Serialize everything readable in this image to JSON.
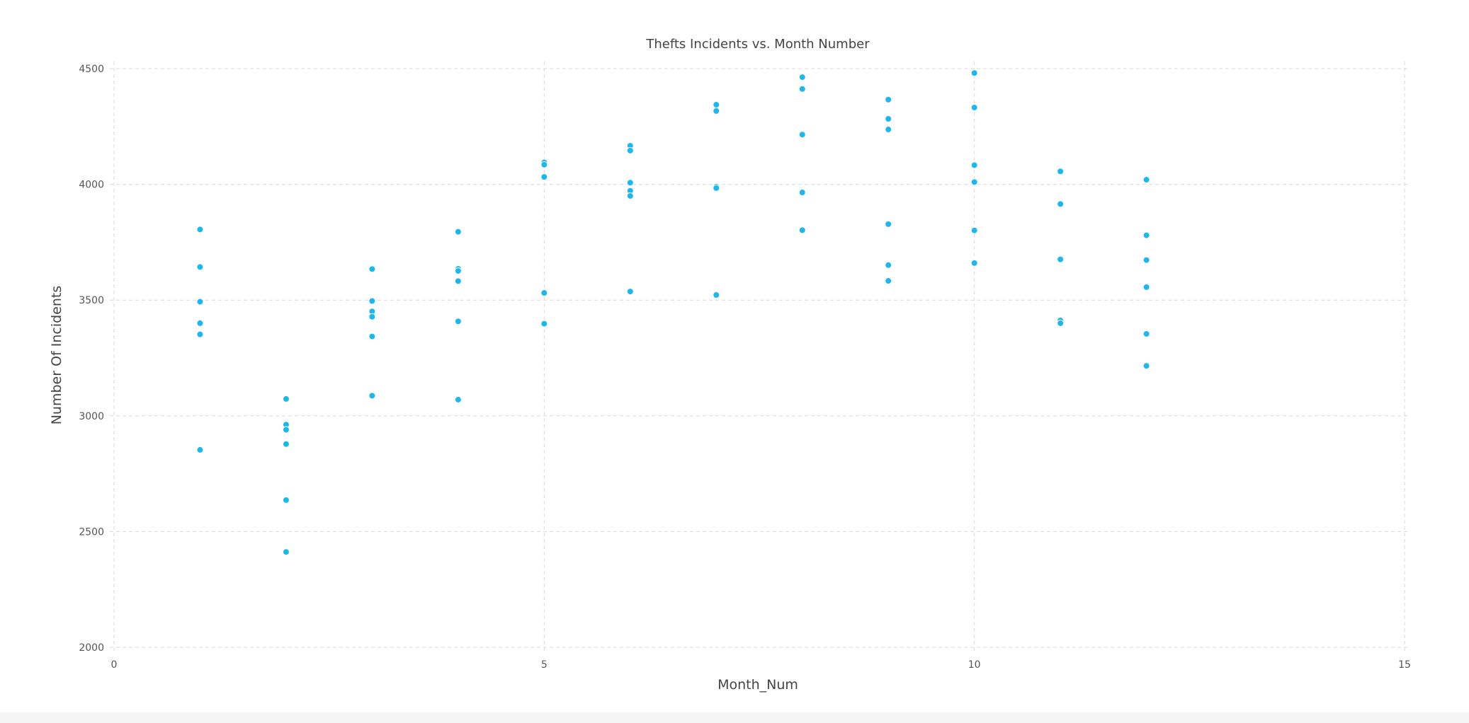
{
  "chart_data": {
    "type": "scatter",
    "title": "Thefts Incidents vs. Month Number",
    "xlabel": "Month_Num",
    "ylabel": "Number Of Incidents",
    "xlim": [
      0,
      15
    ],
    "ylim": [
      2000,
      4500
    ],
    "x_ticks": [
      0,
      5,
      10,
      15
    ],
    "y_ticks": [
      2000,
      2500,
      3000,
      3500,
      4000,
      4500
    ],
    "grid": true,
    "colors": {
      "point": "#1ab8ef",
      "grid": "#d9d9d9",
      "background": "#ffffff",
      "page": "#f5f5f5"
    },
    "series": [
      {
        "points": [
          [
            1,
            3805
          ],
          [
            1,
            3643
          ],
          [
            1,
            3493
          ],
          [
            1,
            3400
          ],
          [
            1,
            3352
          ],
          [
            1,
            2853
          ],
          [
            2,
            3073
          ],
          [
            2,
            2962
          ],
          [
            2,
            2940
          ],
          [
            2,
            2878
          ],
          [
            2,
            2636
          ],
          [
            2,
            2412
          ],
          [
            3,
            3634
          ],
          [
            3,
            3496
          ],
          [
            3,
            3451
          ],
          [
            3,
            3428
          ],
          [
            3,
            3343
          ],
          [
            3,
            3087
          ],
          [
            4,
            3795
          ],
          [
            4,
            3635
          ],
          [
            4,
            3626
          ],
          [
            4,
            3582
          ],
          [
            4,
            3408
          ],
          [
            4,
            3070
          ],
          [
            5,
            4095
          ],
          [
            5,
            4085
          ],
          [
            5,
            4032
          ],
          [
            5,
            3531
          ],
          [
            5,
            3398
          ],
          [
            6,
            4167
          ],
          [
            6,
            4146
          ],
          [
            6,
            4007
          ],
          [
            6,
            3972
          ],
          [
            6,
            3950
          ],
          [
            6,
            3537
          ],
          [
            7,
            4344
          ],
          [
            7,
            4317
          ],
          [
            7,
            3990
          ],
          [
            7,
            3984
          ],
          [
            7,
            3522
          ],
          [
            8,
            4463
          ],
          [
            8,
            4412
          ],
          [
            8,
            4215
          ],
          [
            8,
            3965
          ],
          [
            8,
            3802
          ],
          [
            9,
            4366
          ],
          [
            9,
            4283
          ],
          [
            9,
            4237
          ],
          [
            9,
            3828
          ],
          [
            9,
            3651
          ],
          [
            9,
            3583
          ],
          [
            10,
            4481
          ],
          [
            10,
            4332
          ],
          [
            10,
            4083
          ],
          [
            10,
            4010
          ],
          [
            10,
            3801
          ],
          [
            10,
            3660
          ],
          [
            11,
            4056
          ],
          [
            11,
            3915
          ],
          [
            11,
            3676
          ],
          [
            11,
            3412
          ],
          [
            11,
            3400
          ],
          [
            12,
            4020
          ],
          [
            12,
            3780
          ],
          [
            12,
            3673
          ],
          [
            12,
            3556
          ],
          [
            12,
            3354
          ],
          [
            12,
            3216
          ]
        ]
      }
    ]
  }
}
